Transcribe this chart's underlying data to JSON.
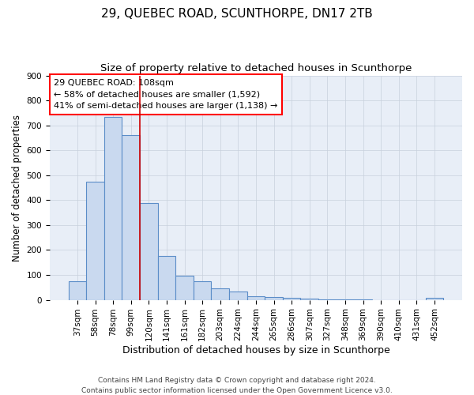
{
  "title": "29, QUEBEC ROAD, SCUNTHORPE, DN17 2TB",
  "subtitle": "Size of property relative to detached houses in Scunthorpe",
  "xlabel": "Distribution of detached houses by size in Scunthorpe",
  "ylabel": "Number of detached properties",
  "bar_labels": [
    "37sqm",
    "58sqm",
    "78sqm",
    "99sqm",
    "120sqm",
    "141sqm",
    "161sqm",
    "182sqm",
    "203sqm",
    "224sqm",
    "244sqm",
    "265sqm",
    "286sqm",
    "307sqm",
    "327sqm",
    "348sqm",
    "369sqm",
    "390sqm",
    "410sqm",
    "431sqm",
    "452sqm"
  ],
  "bar_values": [
    75,
    475,
    735,
    660,
    390,
    175,
    97,
    75,
    45,
    32,
    15,
    10,
    7,
    4,
    2,
    1,
    1,
    0,
    0,
    0,
    8
  ],
  "bar_color": "#c9d9ef",
  "bar_edge_color": "#5b8dc8",
  "bar_edge_width": 0.8,
  "vline_x": 3.5,
  "vline_color": "#cc0000",
  "annotation_line1": "29 QUEBEC ROAD: 108sqm",
  "annotation_line2": "← 58% of detached houses are smaller (1,592)",
  "annotation_line3": "41% of semi-detached houses are larger (1,138) →",
  "ylim": [
    0,
    900
  ],
  "yticks": [
    0,
    100,
    200,
    300,
    400,
    500,
    600,
    700,
    800,
    900
  ],
  "grid_color": "#c8d0dc",
  "bg_color": "#e8eef7",
  "footer_line1": "Contains HM Land Registry data © Crown copyright and database right 2024.",
  "footer_line2": "Contains public sector information licensed under the Open Government Licence v3.0.",
  "title_fontsize": 11,
  "subtitle_fontsize": 9.5,
  "xlabel_fontsize": 9,
  "ylabel_fontsize": 8.5,
  "tick_fontsize": 7.5,
  "annot_fontsize": 8,
  "footer_fontsize": 6.5
}
